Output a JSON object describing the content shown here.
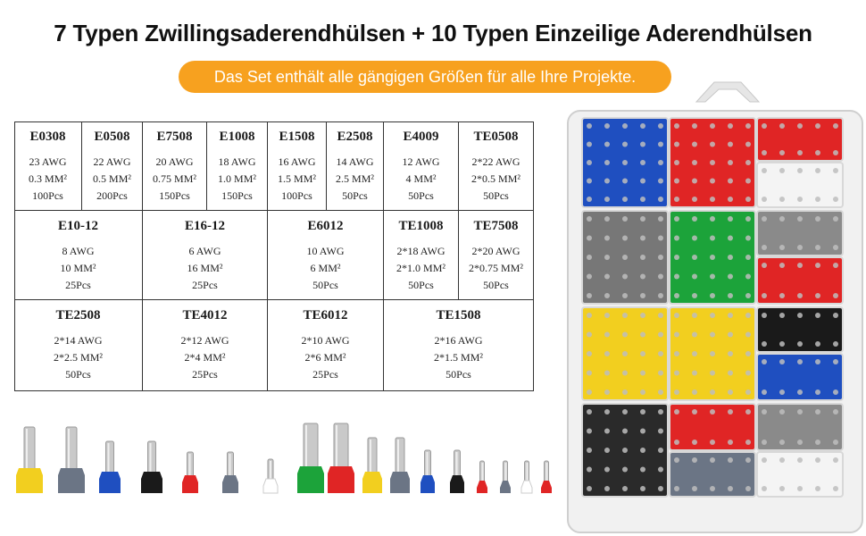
{
  "title": "7 Typen Zwillingsaderendhülsen + 10 Typen Einzeilige Aderendhülsen",
  "subtitle": "Das Set enthält alle gängigen Größen für alle Ihre Projekte.",
  "colors": {
    "accent_orange": "#f7a11f",
    "table_border": "#333333"
  },
  "table": {
    "row1": [
      {
        "code": "E0308",
        "awg": "23 AWG",
        "mm": "0.3 MM²",
        "pcs": "100Pcs"
      },
      {
        "code": "E0508",
        "awg": "22 AWG",
        "mm": "0.5 MM²",
        "pcs": "200Pcs"
      },
      {
        "code": "E7508",
        "awg": "20 AWG",
        "mm": "0.75 MM²",
        "pcs": "150Pcs"
      },
      {
        "code": "E1008",
        "awg": "18 AWG",
        "mm": "1.0 MM²",
        "pcs": "150Pcs"
      },
      {
        "code": "E1508",
        "awg": "16 AWG",
        "mm": "1.5 MM²",
        "pcs": "100Pcs"
      },
      {
        "code": "E2508",
        "awg": "14 AWG",
        "mm": "2.5 MM²",
        "pcs": "50Pcs"
      },
      {
        "code": "E4009",
        "awg": "12 AWG",
        "mm": "4 MM²",
        "pcs": "50Pcs"
      },
      {
        "code": "TE0508",
        "awg": "2*22 AWG",
        "mm": "2*0.5 MM²",
        "pcs": "50Pcs"
      }
    ],
    "row2": [
      {
        "code": "E10-12",
        "awg": "8 AWG",
        "mm": "10 MM²",
        "pcs": "25Pcs"
      },
      {
        "code": "E16-12",
        "awg": "6 AWG",
        "mm": "16 MM²",
        "pcs": "25Pcs"
      },
      {
        "code": "E6012",
        "awg": "10 AWG",
        "mm": "6 MM²",
        "pcs": "50Pcs"
      },
      {
        "code": "TE1008",
        "awg": "2*18 AWG",
        "mm": "2*1.0 MM²",
        "pcs": "50Pcs"
      },
      {
        "code": "TE7508",
        "awg": "2*20 AWG",
        "mm": "2*0.75 MM²",
        "pcs": "50Pcs"
      }
    ],
    "row3": [
      {
        "code": "TE2508",
        "awg": "2*14 AWG",
        "mm": "2*2.5 MM²",
        "pcs": "50Pcs"
      },
      {
        "code": "TE4012",
        "awg": "2*12 AWG",
        "mm": "2*4 MM²",
        "pcs": "25Pcs"
      },
      {
        "code": "TE6012",
        "awg": "2*10 AWG",
        "mm": "2*6 MM²",
        "pcs": "25Pcs"
      },
      {
        "code": "TE1508",
        "awg": "2*16 AWG",
        "mm": "2*1.5 MM²",
        "pcs": "50Pcs"
      }
    ]
  },
  "ferrules": [
    {
      "color": "#f2cf1f",
      "kind": "single-large"
    },
    {
      "color": "#6b7585",
      "kind": "single-large"
    },
    {
      "color": "#1f4fc0",
      "kind": "single-medium"
    },
    {
      "color": "#1a1a1a",
      "kind": "single-medium"
    },
    {
      "color": "#e02525",
      "kind": "single-small"
    },
    {
      "color": "#6b7585",
      "kind": "single-small"
    },
    {
      "color": "#ffffff",
      "kind": "single-tiny"
    },
    {
      "color": "#1ca33a",
      "kind": "double-large"
    },
    {
      "color": "#e02525",
      "kind": "double-large"
    },
    {
      "color": "#f2cf1f",
      "kind": "double-medium"
    },
    {
      "color": "#6b7585",
      "kind": "double-medium"
    },
    {
      "color": "#1f4fc0",
      "kind": "double-small"
    },
    {
      "color": "#1a1a1a",
      "kind": "double-small"
    },
    {
      "color": "#e02525",
      "kind": "double-tiny"
    },
    {
      "color": "#6b7585",
      "kind": "double-tiny"
    },
    {
      "color": "#ffffff",
      "kind": "double-tiny"
    },
    {
      "color": "#e02525",
      "kind": "double-tiny"
    }
  ],
  "organizer": {
    "compartments": [
      {
        "color": "#1f4fc0"
      },
      {
        "color": "#e02525"
      },
      {
        "color": "#e02525"
      },
      {
        "color": "#f4f4f4"
      },
      {
        "color": "#777777"
      },
      {
        "color": "#1ca33a"
      },
      {
        "color": "#8a8a8a"
      },
      {
        "color": "#e02525"
      },
      {
        "color": "#f2cf1f"
      },
      {
        "color": "#f2cf1f"
      },
      {
        "color": "#1a1a1a"
      },
      {
        "color": "#1f4fc0"
      },
      {
        "color": "#2a2a2a"
      },
      {
        "color": "#e02525"
      },
      {
        "color": "#8a8a8a"
      },
      {
        "color": "#6b7585"
      },
      {
        "color": "#f4f4f4"
      }
    ]
  }
}
